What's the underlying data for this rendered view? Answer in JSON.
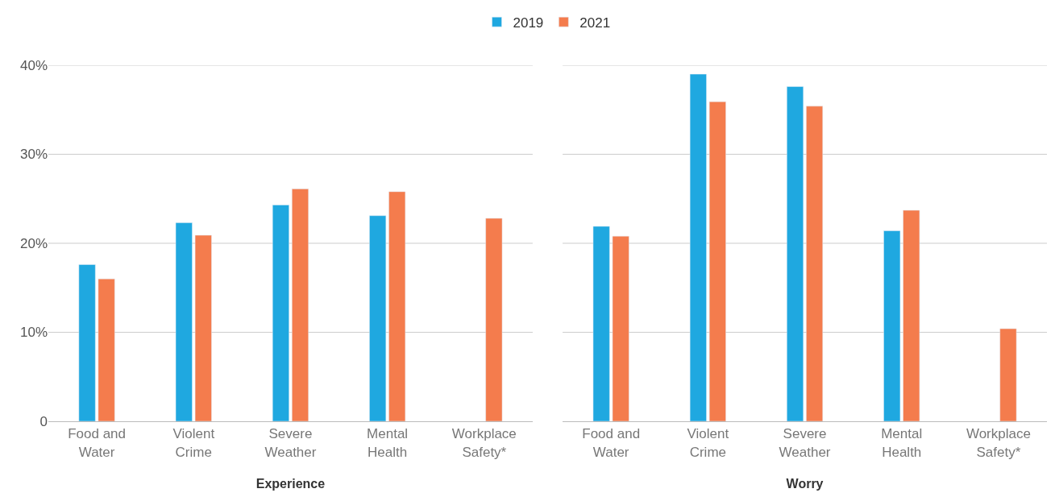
{
  "chart_data": [
    {
      "type": "bar",
      "xlabel": "Experience",
      "categories": [
        "Food and\nWater",
        "Violent\nCrime",
        "Severe\nWeather",
        "Mental\nHealth",
        "Workplace\nSafety*"
      ],
      "series": [
        {
          "name": "2019",
          "color": "#1fa8e0",
          "values": [
            17.6,
            22.3,
            24.3,
            23.1,
            null
          ]
        },
        {
          "name": "2021",
          "color": "#f47c4d",
          "values": [
            16.0,
            20.9,
            26.1,
            25.8,
            22.8
          ]
        }
      ],
      "ylim": [
        0,
        40
      ],
      "yticks": [
        0,
        {
          "value": 10,
          "label": "10%"
        },
        {
          "value": 20,
          "label": "20%"
        },
        {
          "value": 30,
          "label": "30%"
        },
        {
          "value": 40,
          "label": "40%"
        }
      ],
      "grid": "y",
      "legend": "top"
    },
    {
      "type": "bar",
      "xlabel": "Worry",
      "categories": [
        "Food and\nWater",
        "Violent\nCrime",
        "Severe\nWeather",
        "Mental\nHealth",
        "Workplace\nSafety*"
      ],
      "series": [
        {
          "name": "2019",
          "color": "#1fa8e0",
          "values": [
            21.9,
            39.0,
            37.6,
            21.4,
            null
          ]
        },
        {
          "name": "2021",
          "color": "#f47c4d",
          "values": [
            20.8,
            35.9,
            35.4,
            23.7,
            10.4
          ]
        }
      ],
      "ylim": [
        0,
        40
      ],
      "yticks": [
        {
          "value": 0,
          "label": null
        },
        {
          "value": 10,
          "label": null
        },
        {
          "value": 20,
          "label": null
        },
        {
          "value": 30,
          "label": null
        },
        {
          "value": 40,
          "label": null
        }
      ],
      "grid": "y",
      "legend": "top",
      "tick_labels": "x"
    }
  ]
}
